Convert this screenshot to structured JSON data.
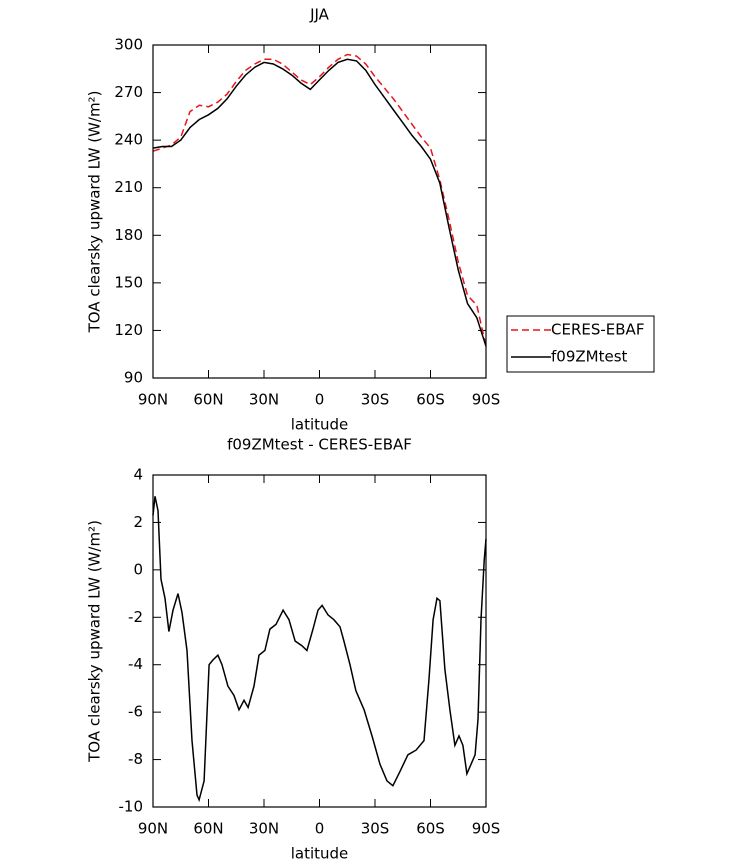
{
  "chart_data": [
    {
      "type": "line",
      "title": "JJA",
      "xlabel": "latitude",
      "ylabel": "TOA clearsky upward LW (W/m²)",
      "xlim": [
        90,
        -90
      ],
      "ylim": [
        90,
        300
      ],
      "xticks": [
        {
          "value": 90,
          "label": "90N"
        },
        {
          "value": 60,
          "label": "60N"
        },
        {
          "value": 30,
          "label": "30N"
        },
        0,
        {
          "value": -30,
          "label": "30S"
        },
        {
          "value": -60,
          "label": "60S"
        },
        {
          "value": -90,
          "label": "90S"
        }
      ],
      "yticks": [
        90,
        120,
        150,
        180,
        210,
        240,
        270,
        300
      ],
      "legend": "right",
      "x": [
        90,
        85,
        80,
        75,
        70,
        65,
        60,
        55,
        50,
        45,
        40,
        35,
        30,
        25,
        20,
        15,
        10,
        5,
        0,
        -5,
        -10,
        -15,
        -20,
        -25,
        -30,
        -35,
        -40,
        -45,
        -50,
        -55,
        -60,
        -65,
        -70,
        -75,
        -80,
        -85,
        -90
      ],
      "series": [
        {
          "name": "CERES-EBAF",
          "color": "#e8141c",
          "dashed": true,
          "values": [
            233,
            235,
            237,
            242,
            258,
            262,
            261,
            264,
            269,
            277,
            284,
            288,
            291,
            291,
            288,
            283,
            278,
            275,
            280,
            286,
            291,
            294,
            293,
            288,
            280,
            273,
            266,
            258,
            250,
            242,
            235,
            215,
            190,
            163,
            142,
            136,
            110
          ]
        },
        {
          "name": "f09ZMtest",
          "color": "#000000",
          "dashed": false,
          "values": [
            235,
            236,
            236,
            240,
            248,
            253,
            256,
            260,
            266,
            274,
            281,
            286,
            289,
            288,
            285,
            281,
            276,
            272,
            278,
            284,
            289,
            291,
            290,
            284,
            275,
            267,
            259,
            251,
            243,
            236,
            228,
            213,
            185,
            158,
            137,
            128,
            110
          ]
        }
      ]
    },
    {
      "type": "line",
      "title": "f09ZMtest - CERES-EBAF",
      "xlabel": "latitude",
      "ylabel": "TOA clearsky upward LW (W/m²)",
      "xlim": [
        90,
        -90
      ],
      "ylim": [
        -10,
        4
      ],
      "xticks": [
        {
          "value": 90,
          "label": "90N"
        },
        {
          "value": 60,
          "label": "60N"
        },
        {
          "value": 30,
          "label": "30N"
        },
        0,
        {
          "value": -30,
          "label": "30S"
        },
        {
          "value": -60,
          "label": "60S"
        },
        {
          "value": -90,
          "label": "90S"
        }
      ],
      "yticks": [
        -10,
        -8,
        -6,
        -4,
        -2,
        0,
        2,
        4
      ],
      "x": [
        90,
        88.9,
        87.3,
        85.7,
        83.5,
        81.4,
        79.2,
        76.5,
        74.3,
        71.6,
        68.9,
        66.2,
        65.1,
        62.4,
        59.7,
        57.6,
        54.9,
        52.7,
        49.5,
        46.2,
        43.5,
        40.8,
        38.6,
        35.4,
        32.7,
        29.5,
        26.8,
        23.5,
        19.7,
        16.5,
        13.2,
        9.5,
        6.8,
        3.5,
        0.8,
        -1.4,
        -4.6,
        -7.8,
        -11.1,
        -13.2,
        -16.5,
        -19.7,
        -24.1,
        -28.4,
        -32.7,
        -36.5,
        -39.7,
        -43.5,
        -47.8,
        -52.2,
        -56.5,
        -59.2,
        -61.4,
        -63.5,
        -65.1,
        -67.8,
        -70.5,
        -73.2,
        -75.4,
        -77.5,
        -79.7,
        -81.9,
        -84.1,
        -85.7,
        -87.3,
        -89,
        -90
      ],
      "series": [
        {
          "color": "#000000",
          "dashed": false,
          "values": [
            2.3,
            3.1,
            2.5,
            -0.4,
            -1.2,
            -2.6,
            -1.7,
            -1.0,
            -1.8,
            -3.4,
            -7.2,
            -9.5,
            -9.7,
            -8.9,
            -4.0,
            -3.8,
            -3.6,
            -4.0,
            -4.9,
            -5.3,
            -5.9,
            -5.5,
            -5.8,
            -4.9,
            -3.6,
            -3.4,
            -2.5,
            -2.3,
            -1.7,
            -2.1,
            -3.0,
            -3.2,
            -3.4,
            -2.5,
            -1.7,
            -1.5,
            -1.9,
            -2.1,
            -2.4,
            -3.0,
            -4.0,
            -5.1,
            -5.9,
            -7.0,
            -8.2,
            -8.9,
            -9.1,
            -8.5,
            -7.8,
            -7.6,
            -7.2,
            -4.6,
            -2.1,
            -1.2,
            -1.3,
            -4.2,
            -5.9,
            -7.4,
            -7.0,
            -7.4,
            -8.6,
            -8.2,
            -7.8,
            -6.3,
            -2.1,
            0.4,
            1.3
          ]
        }
      ]
    }
  ]
}
